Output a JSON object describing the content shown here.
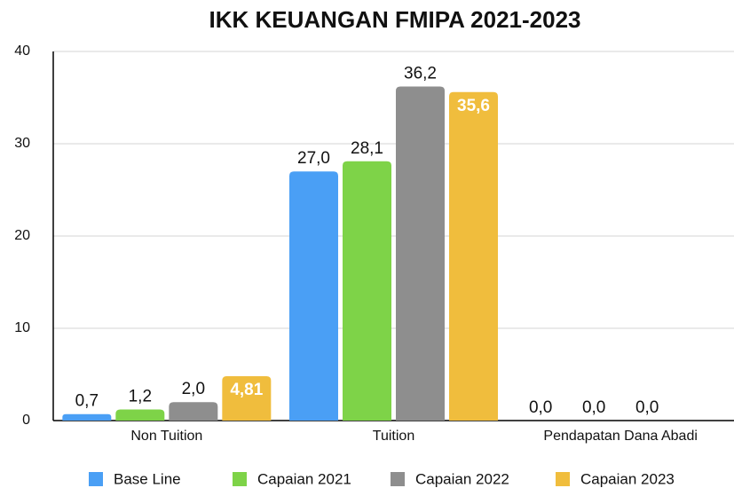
{
  "chart_data": {
    "type": "bar",
    "title": "IKK KEUANGAN FMIPA 2021-2023",
    "categories": [
      "Non Tuition",
      "Tuition",
      "Pendapatan Dana Abadi"
    ],
    "series": [
      {
        "name": "Base Line",
        "color": "#4a9ff5",
        "values": [
          0.7,
          27.0,
          0.0
        ],
        "value_labels": [
          "0,7",
          "27,0",
          "0,0"
        ]
      },
      {
        "name": "Capaian 2021",
        "color": "#7ed348",
        "values": [
          1.2,
          28.1,
          0.0
        ],
        "value_labels": [
          "1,2",
          "28,1",
          "0,0"
        ]
      },
      {
        "name": "Capaian 2022",
        "color": "#8e8e8e",
        "values": [
          2.0,
          36.2,
          0.0
        ],
        "value_labels": [
          "2,0",
          "36,2",
          "0,0"
        ]
      },
      {
        "name": "Capaian 2023",
        "color": "#f0bd3d",
        "values": [
          4.81,
          35.6,
          null
        ],
        "value_labels": [
          "4,81",
          "35,6",
          null
        ]
      }
    ],
    "ylim": [
      0,
      40
    ],
    "yticks": [
      0,
      10,
      20,
      30,
      40
    ],
    "grid": true,
    "legend": "bottom"
  }
}
